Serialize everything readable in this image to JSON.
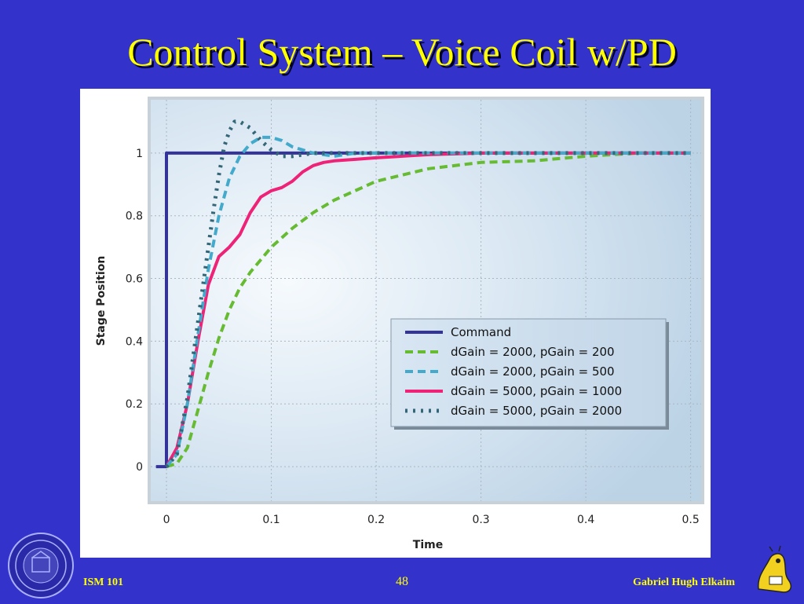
{
  "slide": {
    "title": "Control System – Voice Coil w/PD",
    "footer_left": "ISM 101",
    "page_number": "48",
    "footer_right": "Gabriel Hugh Elkaim",
    "seal_icon": "university-seal-icon",
    "mascot_icon": "banana-slug-mascot-icon"
  },
  "colors": {
    "background": "#3333cc",
    "title": "#ffff00",
    "command": "#333399",
    "d2000_p200": "#66bb33",
    "d2000_p500": "#44aacc",
    "d5000_p1000": "#ee2277",
    "d5000_p2000": "#336677"
  },
  "chart_data": {
    "type": "line",
    "xlabel": "Time",
    "ylabel": "Stage Position",
    "xlim": [
      -0.015,
      0.51
    ],
    "ylim": [
      -0.11,
      1.17
    ],
    "xticks": [
      "0",
      "0.1",
      "0.2",
      "0.3",
      "0.4",
      "0.5"
    ],
    "yticks": [
      "0",
      "0.2",
      "0.4",
      "0.6",
      "0.8",
      "1"
    ],
    "grid": true,
    "legend_position": "lower-right",
    "series": [
      {
        "name": "Command",
        "style": "solid",
        "x": [
          -0.01,
          0,
          0,
          0.5
        ],
        "y": [
          0,
          0,
          1,
          1
        ]
      },
      {
        "name": "dGain = 2000, pGain = 200",
        "style": "dashed",
        "x": [
          0,
          0.01,
          0.02,
          0.03,
          0.04,
          0.05,
          0.06,
          0.07,
          0.08,
          0.09,
          0.1,
          0.12,
          0.14,
          0.16,
          0.18,
          0.2,
          0.25,
          0.3,
          0.35,
          0.4,
          0.45,
          0.5
        ],
        "y": [
          0,
          0.01,
          0.06,
          0.18,
          0.3,
          0.41,
          0.5,
          0.57,
          0.62,
          0.66,
          0.7,
          0.76,
          0.81,
          0.85,
          0.88,
          0.91,
          0.95,
          0.97,
          0.975,
          0.99,
          1.0,
          1.0
        ]
      },
      {
        "name": "dGain = 2000, pGain = 500",
        "style": "dashed",
        "x": [
          0,
          0.01,
          0.02,
          0.03,
          0.04,
          0.05,
          0.06,
          0.07,
          0.08,
          0.09,
          0.1,
          0.11,
          0.12,
          0.13,
          0.14,
          0.16,
          0.18,
          0.2,
          0.25,
          0.3,
          0.4,
          0.5
        ],
        "y": [
          0,
          0.04,
          0.2,
          0.42,
          0.63,
          0.8,
          0.92,
          0.99,
          1.03,
          1.05,
          1.05,
          1.04,
          1.02,
          1.01,
          1.0,
          0.99,
          1.0,
          1.0,
          1.0,
          1.0,
          1.0,
          1.0
        ]
      },
      {
        "name": "dGain = 5000, pGain = 1000",
        "style": "solid",
        "x": [
          0,
          0.01,
          0.02,
          0.03,
          0.04,
          0.05,
          0.06,
          0.07,
          0.08,
          0.09,
          0.1,
          0.11,
          0.12,
          0.13,
          0.14,
          0.15,
          0.16,
          0.18,
          0.2,
          0.25,
          0.3,
          0.4,
          0.5
        ],
        "y": [
          0,
          0.06,
          0.2,
          0.4,
          0.58,
          0.67,
          0.7,
          0.74,
          0.81,
          0.86,
          0.88,
          0.89,
          0.91,
          0.94,
          0.96,
          0.97,
          0.975,
          0.98,
          0.985,
          0.995,
          1.0,
          1.0,
          1.0
        ]
      },
      {
        "name": "dGain = 5000, pGain = 2000",
        "style": "dotted",
        "x": [
          0,
          0.01,
          0.02,
          0.03,
          0.04,
          0.045,
          0.05,
          0.055,
          0.06,
          0.065,
          0.07,
          0.08,
          0.09,
          0.1,
          0.11,
          0.12,
          0.14,
          0.16,
          0.2,
          0.3,
          0.4,
          0.5
        ],
        "y": [
          0,
          0.04,
          0.22,
          0.46,
          0.7,
          0.82,
          0.93,
          1.02,
          1.07,
          1.1,
          1.1,
          1.08,
          1.04,
          1.01,
          0.99,
          0.99,
          1.0,
          1.0,
          1.0,
          1.0,
          1.0,
          1.0
        ]
      }
    ]
  }
}
